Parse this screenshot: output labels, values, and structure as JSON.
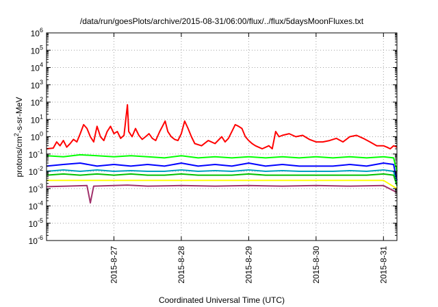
{
  "chart_data": {
    "type": "line",
    "title": "/data/run/goesPlots/archive/2015-08-31/06:00/flux/../flux/5daysMoonFluxes.txt",
    "xlabel": "Coordinated Universal Time (UTC)",
    "ylabel": "protons/cm2-s-sr-MeV",
    "ylabel_parts": [
      "protons/cm",
      "2",
      "-s-sr-MeV"
    ],
    "yscale": "log",
    "ylim": [
      1e-06,
      1000000.0
    ],
    "ytick_exponents": [
      "-6",
      "-5",
      "-4",
      "-3",
      "-2",
      "-1",
      "0",
      "1",
      "2",
      "3",
      "4",
      "5",
      "6"
    ],
    "ytick_base": "10",
    "xlim": [
      0.0,
      5.2
    ],
    "xticks": [
      {
        "value": 1.0,
        "label": "2015-8-27"
      },
      {
        "value": 2.0,
        "label": "2015-8-28"
      },
      {
        "value": 3.0,
        "label": "2015-8-29"
      },
      {
        "value": 4.0,
        "label": "2015-8-30"
      },
      {
        "value": 5.0,
        "label": "2015-8-31"
      }
    ],
    "grid": true,
    "legend": "none",
    "series": [
      {
        "color": "#ff0000",
        "points": [
          [
            0,
            0.2
          ],
          [
            0.1,
            0.22
          ],
          [
            0.15,
            0.5
          ],
          [
            0.2,
            0.3
          ],
          [
            0.25,
            0.6
          ],
          [
            0.3,
            0.25
          ],
          [
            0.35,
            0.4
          ],
          [
            0.4,
            0.7
          ],
          [
            0.45,
            0.5
          ],
          [
            0.5,
            1.5
          ],
          [
            0.55,
            5
          ],
          [
            0.6,
            3
          ],
          [
            0.65,
            1
          ],
          [
            0.7,
            0.5
          ],
          [
            0.75,
            4
          ],
          [
            0.8,
            1
          ],
          [
            0.85,
            0.6
          ],
          [
            0.9,
            2
          ],
          [
            0.95,
            4
          ],
          [
            1.0,
            1.5
          ],
          [
            1.05,
            2
          ],
          [
            1.1,
            0.8
          ],
          [
            1.15,
            1.2
          ],
          [
            1.2,
            70
          ],
          [
            1.22,
            2
          ],
          [
            1.27,
            1
          ],
          [
            1.32,
            3
          ],
          [
            1.37,
            1.2
          ],
          [
            1.42,
            0.7
          ],
          [
            1.47,
            1
          ],
          [
            1.52,
            1.5
          ],
          [
            1.57,
            0.8
          ],
          [
            1.62,
            0.6
          ],
          [
            1.68,
            2
          ],
          [
            1.72,
            4
          ],
          [
            1.76,
            8
          ],
          [
            1.8,
            2
          ],
          [
            1.85,
            1
          ],
          [
            1.9,
            0.7
          ],
          [
            1.95,
            0.6
          ],
          [
            2.0,
            1.5
          ],
          [
            2.05,
            8
          ],
          [
            2.1,
            3
          ],
          [
            2.15,
            1
          ],
          [
            2.2,
            0.4
          ],
          [
            2.3,
            0.3
          ],
          [
            2.4,
            0.6
          ],
          [
            2.5,
            0.4
          ],
          [
            2.6,
            1
          ],
          [
            2.65,
            0.5
          ],
          [
            2.7,
            0.8
          ],
          [
            2.75,
            2
          ],
          [
            2.8,
            5
          ],
          [
            2.85,
            4
          ],
          [
            2.9,
            3
          ],
          [
            2.95,
            1
          ],
          [
            3.0,
            0.6
          ],
          [
            3.05,
            0.4
          ],
          [
            3.1,
            0.3
          ],
          [
            3.2,
            0.2
          ],
          [
            3.3,
            0.3
          ],
          [
            3.35,
            0.2
          ],
          [
            3.4,
            2
          ],
          [
            3.45,
            1
          ],
          [
            3.5,
            1.2
          ],
          [
            3.6,
            1.5
          ],
          [
            3.7,
            1
          ],
          [
            3.8,
            1.2
          ],
          [
            3.9,
            0.7
          ],
          [
            4.0,
            0.5
          ],
          [
            4.1,
            0.5
          ],
          [
            4.2,
            0.6
          ],
          [
            4.3,
            0.8
          ],
          [
            4.4,
            0.5
          ],
          [
            4.5,
            1
          ],
          [
            4.6,
            1.2
          ],
          [
            4.7,
            0.8
          ],
          [
            4.8,
            0.5
          ],
          [
            4.9,
            0.3
          ],
          [
            5.0,
            0.3
          ],
          [
            5.05,
            0.25
          ],
          [
            5.1,
            0.2
          ],
          [
            5.15,
            0.3
          ],
          [
            5.2,
            0.25
          ]
        ]
      },
      {
        "color": "#00ff00",
        "points": [
          [
            0,
            0.08
          ],
          [
            0.25,
            0.07
          ],
          [
            0.5,
            0.09
          ],
          [
            0.75,
            0.08
          ],
          [
            1.0,
            0.07
          ],
          [
            1.25,
            0.08
          ],
          [
            1.5,
            0.07
          ],
          [
            1.75,
            0.06
          ],
          [
            2.0,
            0.08
          ],
          [
            2.25,
            0.06
          ],
          [
            2.5,
            0.07
          ],
          [
            2.75,
            0.06
          ],
          [
            3.0,
            0.07
          ],
          [
            3.25,
            0.06
          ],
          [
            3.5,
            0.07
          ],
          [
            3.75,
            0.06
          ],
          [
            4.0,
            0.07
          ],
          [
            4.25,
            0.06
          ],
          [
            4.5,
            0.07
          ],
          [
            4.75,
            0.06
          ],
          [
            5.0,
            0.07
          ],
          [
            5.15,
            0.06
          ],
          [
            5.2,
            0.01
          ]
        ]
      },
      {
        "color": "#0000ff",
        "points": [
          [
            0,
            0.02
          ],
          [
            0.25,
            0.025
          ],
          [
            0.5,
            0.03
          ],
          [
            0.75,
            0.02
          ],
          [
            1.0,
            0.025
          ],
          [
            1.25,
            0.02
          ],
          [
            1.5,
            0.025
          ],
          [
            1.75,
            0.02
          ],
          [
            2.0,
            0.03
          ],
          [
            2.25,
            0.02
          ],
          [
            2.5,
            0.025
          ],
          [
            2.75,
            0.02
          ],
          [
            3.0,
            0.03
          ],
          [
            3.25,
            0.02
          ],
          [
            3.5,
            0.025
          ],
          [
            3.75,
            0.02
          ],
          [
            4.0,
            0.02
          ],
          [
            4.25,
            0.02
          ],
          [
            4.5,
            0.025
          ],
          [
            4.75,
            0.02
          ],
          [
            5.0,
            0.03
          ],
          [
            5.15,
            0.025
          ],
          [
            5.2,
            0.003
          ]
        ]
      },
      {
        "color": "#00a0c0",
        "points": [
          [
            0,
            0.01
          ],
          [
            0.25,
            0.012
          ],
          [
            0.5,
            0.01
          ],
          [
            0.75,
            0.012
          ],
          [
            1.0,
            0.01
          ],
          [
            1.25,
            0.011
          ],
          [
            1.5,
            0.01
          ],
          [
            1.75,
            0.01
          ],
          [
            2.0,
            0.012
          ],
          [
            2.25,
            0.01
          ],
          [
            2.5,
            0.011
          ],
          [
            2.75,
            0.01
          ],
          [
            3.0,
            0.012
          ],
          [
            3.25,
            0.01
          ],
          [
            3.5,
            0.011
          ],
          [
            3.75,
            0.01
          ],
          [
            4.0,
            0.01
          ],
          [
            4.25,
            0.01
          ],
          [
            4.5,
            0.011
          ],
          [
            4.75,
            0.01
          ],
          [
            5.0,
            0.012
          ],
          [
            5.15,
            0.01
          ],
          [
            5.2,
            0.002
          ]
        ]
      },
      {
        "color": "#00c000",
        "points": [
          [
            0,
            0.006
          ],
          [
            0.25,
            0.007
          ],
          [
            0.5,
            0.006
          ],
          [
            0.75,
            0.007
          ],
          [
            1.0,
            0.006
          ],
          [
            1.25,
            0.007
          ],
          [
            1.5,
            0.006
          ],
          [
            1.75,
            0.006
          ],
          [
            2.0,
            0.007
          ],
          [
            2.25,
            0.006
          ],
          [
            2.5,
            0.006
          ],
          [
            2.75,
            0.006
          ],
          [
            3.0,
            0.007
          ],
          [
            3.25,
            0.006
          ],
          [
            3.5,
            0.006
          ],
          [
            3.75,
            0.006
          ],
          [
            4.0,
            0.006
          ],
          [
            4.25,
            0.006
          ],
          [
            4.5,
            0.006
          ],
          [
            4.75,
            0.006
          ],
          [
            5.0,
            0.007
          ],
          [
            5.15,
            0.006
          ],
          [
            5.2,
            0.0015
          ]
        ]
      },
      {
        "color": "#ffff00",
        "points": [
          [
            0,
            0.003
          ],
          [
            0.5,
            0.003
          ],
          [
            1.0,
            0.003
          ],
          [
            1.5,
            0.003
          ],
          [
            2.0,
            0.003
          ],
          [
            2.5,
            0.003
          ],
          [
            3.0,
            0.003
          ],
          [
            3.5,
            0.003
          ],
          [
            4.0,
            0.003
          ],
          [
            4.5,
            0.003
          ],
          [
            5.0,
            0.003
          ],
          [
            5.2,
            0.001
          ]
        ]
      },
      {
        "color": "#a0306a",
        "points": [
          [
            0,
            0.0013
          ],
          [
            0.3,
            0.0014
          ],
          [
            0.6,
            0.0015
          ],
          [
            0.65,
            0.00015
          ],
          [
            0.7,
            0.0014
          ],
          [
            1.0,
            0.0015
          ],
          [
            1.2,
            0.0016
          ],
          [
            1.5,
            0.0014
          ],
          [
            2.0,
            0.0015
          ],
          [
            2.5,
            0.0014
          ],
          [
            3.0,
            0.0015
          ],
          [
            3.5,
            0.0014
          ],
          [
            4.0,
            0.0015
          ],
          [
            4.5,
            0.0014
          ],
          [
            5.0,
            0.0015
          ],
          [
            5.2,
            0.0006
          ]
        ]
      }
    ]
  }
}
